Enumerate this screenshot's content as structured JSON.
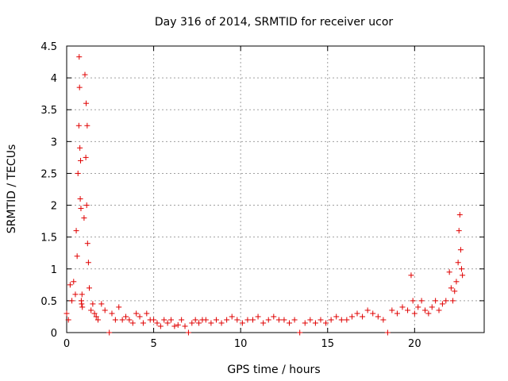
{
  "chart_data": {
    "type": "scatter",
    "title": "Day 316 of 2014, SRMTID for receiver ucor",
    "xlabel": "GPS time / hours",
    "ylabel": "SRMTID / TECUs",
    "xlim": [
      0,
      24
    ],
    "ylim": [
      0,
      4.5
    ],
    "grid": true,
    "marker": "plus",
    "color": "#e00000",
    "x_ticks": [
      "0",
      "5",
      "10",
      "15",
      "20"
    ],
    "x_tick_values": [
      0,
      5,
      10,
      15,
      20
    ],
    "y_ticks": [
      "0",
      "0.5",
      "1",
      "1.5",
      "2",
      "2.5",
      "3",
      "3.5",
      "4",
      "4.5"
    ],
    "y_tick_values": [
      0,
      0.5,
      1,
      1.5,
      2,
      2.5,
      3,
      3.5,
      4,
      4.5
    ],
    "x": [
      0.0,
      0.1,
      0.2,
      0.3,
      0.4,
      0.5,
      0.55,
      0.6,
      0.65,
      0.7,
      0.72,
      0.74,
      0.76,
      0.78,
      0.8,
      0.82,
      0.84,
      0.86,
      0.88,
      0.9,
      1.0,
      1.05,
      1.1,
      1.12,
      1.15,
      1.18,
      1.2,
      1.25,
      1.3,
      1.4,
      1.5,
      1.6,
      1.7,
      1.8,
      2.0,
      2.2,
      2.45,
      2.6,
      2.8,
      3.0,
      3.2,
      3.4,
      3.6,
      3.8,
      4.0,
      4.2,
      4.4,
      4.6,
      4.8,
      5.0,
      5.2,
      5.4,
      5.6,
      5.8,
      6.0,
      6.2,
      6.4,
      6.6,
      6.8,
      7.0,
      7.2,
      7.4,
      7.6,
      7.8,
      8.0,
      8.3,
      8.6,
      8.9,
      9.2,
      9.5,
      9.8,
      10.1,
      10.4,
      10.7,
      11.0,
      11.3,
      11.6,
      11.9,
      12.2,
      12.5,
      12.8,
      13.1,
      13.4,
      13.7,
      14.0,
      14.3,
      14.6,
      14.9,
      15.2,
      15.5,
      15.8,
      16.1,
      16.4,
      16.7,
      17.0,
      17.3,
      17.6,
      17.9,
      18.2,
      18.45,
      18.7,
      19.0,
      19.3,
      19.6,
      19.8,
      19.9,
      20.0,
      20.2,
      20.4,
      20.6,
      20.8,
      21.0,
      21.2,
      21.4,
      21.6,
      21.8,
      22.0,
      22.1,
      22.2,
      22.3,
      22.4,
      22.5,
      22.55,
      22.6,
      22.65,
      22.7,
      22.75
    ],
    "y": [
      0.3,
      0.2,
      0.75,
      0.5,
      0.8,
      0.6,
      1.6,
      1.2,
      2.5,
      3.25,
      4.33,
      3.85,
      2.9,
      2.1,
      2.7,
      1.95,
      0.5,
      0.45,
      0.6,
      0.4,
      1.8,
      4.05,
      2.75,
      3.6,
      2.0,
      3.25,
      1.4,
      1.1,
      0.7,
      0.35,
      0.45,
      0.3,
      0.25,
      0.2,
      0.45,
      0.35,
      0.0,
      0.3,
      0.2,
      0.4,
      0.2,
      0.25,
      0.2,
      0.15,
      0.3,
      0.25,
      0.15,
      0.3,
      0.2,
      0.2,
      0.15,
      0.1,
      0.2,
      0.15,
      0.2,
      0.1,
      0.12,
      0.2,
      0.1,
      0.0,
      0.15,
      0.2,
      0.15,
      0.2,
      0.2,
      0.15,
      0.2,
      0.15,
      0.2,
      0.25,
      0.2,
      0.15,
      0.2,
      0.2,
      0.25,
      0.15,
      0.2,
      0.25,
      0.2,
      0.2,
      0.15,
      0.2,
      0.0,
      0.15,
      0.2,
      0.15,
      0.2,
      0.15,
      0.2,
      0.25,
      0.2,
      0.2,
      0.25,
      0.3,
      0.25,
      0.35,
      0.3,
      0.25,
      0.2,
      0.0,
      0.35,
      0.3,
      0.4,
      0.35,
      0.9,
      0.5,
      0.3,
      0.4,
      0.5,
      0.35,
      0.3,
      0.4,
      0.5,
      0.35,
      0.45,
      0.5,
      0.95,
      0.7,
      0.5,
      0.65,
      0.8,
      1.1,
      1.6,
      1.85,
      1.3,
      1.0,
      0.9
    ]
  }
}
